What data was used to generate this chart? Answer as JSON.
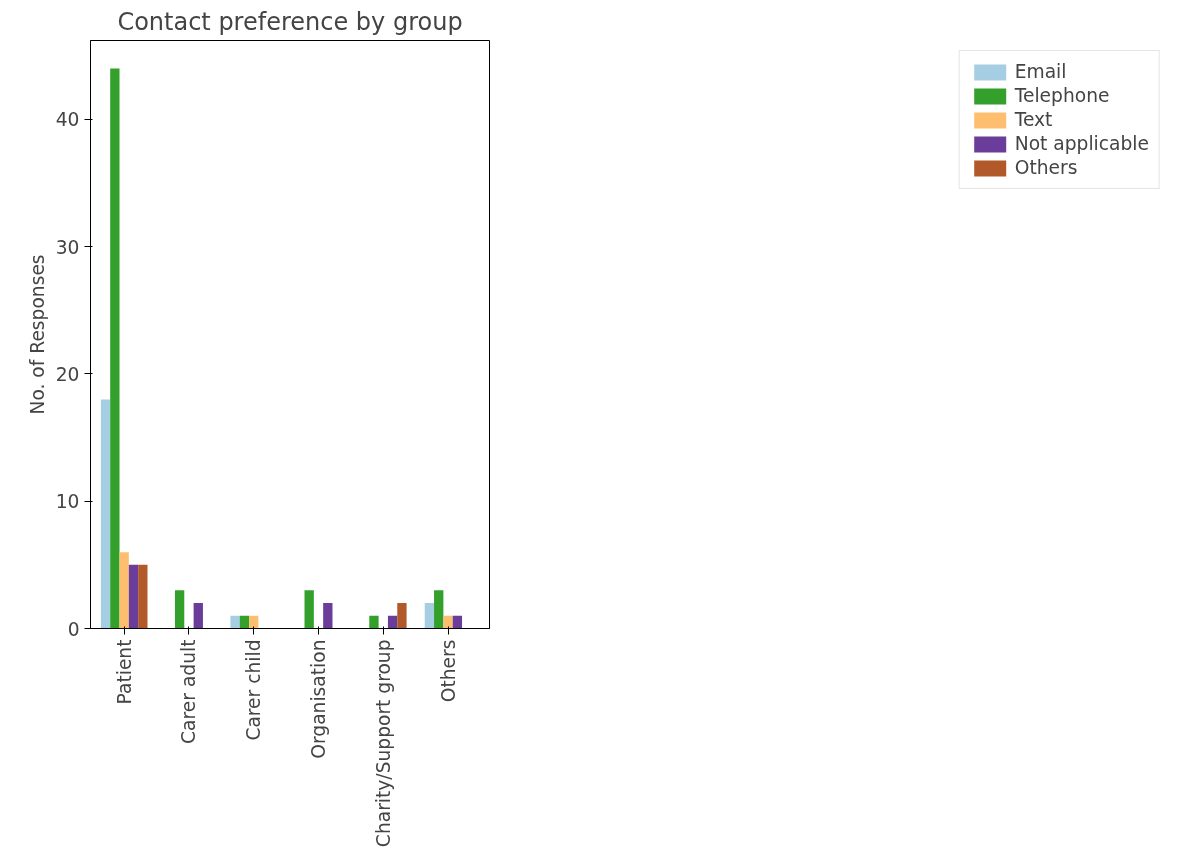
{
  "chart_data": {
    "type": "bar",
    "title": "Contact preference by group",
    "ylabel": "No. of Responses",
    "categories": [
      "Patient",
      "Carer adult",
      "Carer child",
      "Organisation",
      "Charity/Support group",
      "Others"
    ],
    "series": [
      {
        "name": "Email",
        "color": "#a6cee3",
        "values": [
          18,
          0,
          1,
          0,
          0,
          2
        ]
      },
      {
        "name": "Telephone",
        "color": "#33a02c",
        "values": [
          44,
          3,
          1,
          3,
          1,
          3
        ]
      },
      {
        "name": "Text",
        "color": "#fdbf6f",
        "values": [
          6,
          0,
          1,
          0,
          0,
          1
        ]
      },
      {
        "name": "Not applicable",
        "color": "#6a3d9a",
        "values": [
          5,
          2,
          0,
          2,
          1,
          1
        ]
      },
      {
        "name": "Others",
        "color": "#b15928",
        "values": [
          5,
          0,
          0,
          0,
          2,
          0
        ]
      }
    ],
    "ylim": [
      0,
      46.2
    ],
    "yticks": [
      0,
      10,
      20,
      30,
      40
    ],
    "grid": false,
    "legend": "right"
  }
}
